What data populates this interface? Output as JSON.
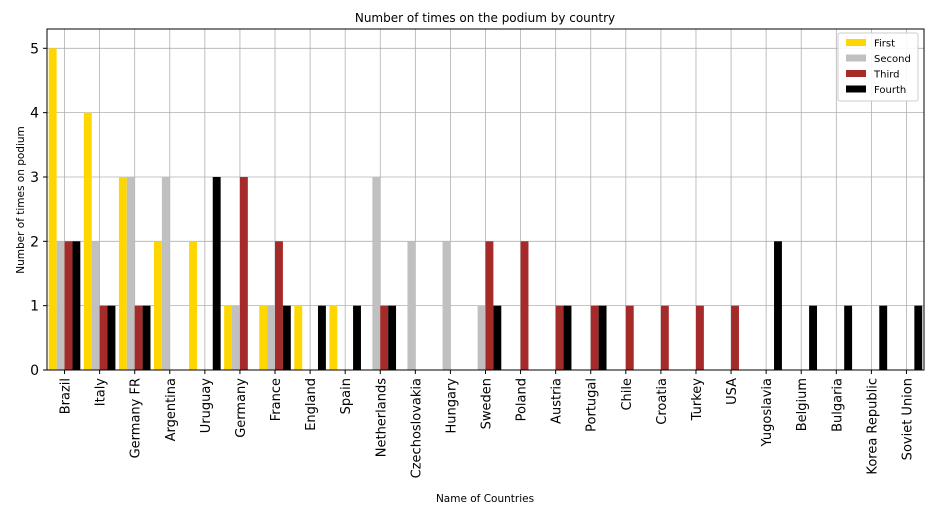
{
  "chart_data": {
    "type": "bar",
    "title": "Number of times on the podium by country",
    "xlabel": "Name of Countries",
    "ylabel": "Number of times on podium",
    "ylim": [
      0,
      5.3
    ],
    "yticks": [
      0,
      1,
      2,
      3,
      4,
      5
    ],
    "grid": true,
    "legend_position": "top-right",
    "categories": [
      "Brazil",
      "Italy",
      "Germany FR",
      "Argentina",
      "Uruguay",
      "Germany",
      "France",
      "England",
      "Spain",
      "Netherlands",
      "Czechoslovakia",
      "Hungary",
      "Sweden",
      "Poland",
      "Austria",
      "Portugal",
      "Chile",
      "Croatia",
      "Turkey",
      "USA",
      "Yugoslavia",
      "Belgium",
      "Bulgaria",
      "Korea Republic",
      "Soviet Union"
    ],
    "series": [
      {
        "name": "First",
        "color": "#FFD700",
        "values": [
          5,
          4,
          3,
          2,
          2,
          1,
          1,
          1,
          1,
          0,
          0,
          0,
          0,
          0,
          0,
          0,
          0,
          0,
          0,
          0,
          0,
          0,
          0,
          0,
          0
        ]
      },
      {
        "name": "Second",
        "color": "#C0C0C0",
        "values": [
          2,
          2,
          3,
          3,
          0,
          1,
          1,
          0,
          0,
          3,
          2,
          2,
          1,
          0,
          0,
          0,
          0,
          0,
          0,
          0,
          0,
          0,
          0,
          0,
          0
        ]
      },
      {
        "name": "Third",
        "color": "#A52A2A",
        "values": [
          2,
          1,
          1,
          0,
          0,
          3,
          2,
          0,
          0,
          1,
          0,
          0,
          2,
          2,
          1,
          1,
          1,
          1,
          1,
          1,
          0,
          0,
          0,
          0,
          0
        ]
      },
      {
        "name": "Fourth",
        "color": "#000000",
        "values": [
          2,
          1,
          1,
          0,
          3,
          0,
          1,
          1,
          1,
          1,
          0,
          0,
          1,
          0,
          1,
          1,
          0,
          0,
          0,
          0,
          2,
          1,
          1,
          1,
          1
        ]
      }
    ]
  }
}
